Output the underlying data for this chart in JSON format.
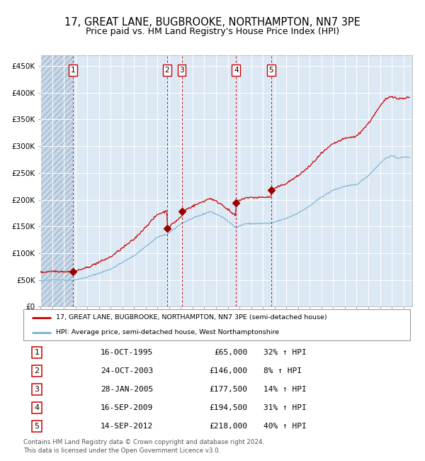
{
  "title_line1": "17, GREAT LANE, BUGBROOKE, NORTHAMPTON, NN7 3PE",
  "title_line2": "Price paid vs. HM Land Registry's House Price Index (HPI)",
  "title_fontsize": 10.5,
  "subtitle_fontsize": 9,
  "plot_bg_color": "#dce9f5",
  "grid_color": "#ffffff",
  "red_line_color": "#cc0000",
  "blue_line_color": "#7ab0d4",
  "sale_marker_color": "#990000",
  "vline_color": "#cc0000",
  "ylim": [
    0,
    470000
  ],
  "yticks": [
    0,
    50000,
    100000,
    150000,
    200000,
    250000,
    300000,
    350000,
    400000,
    450000
  ],
  "ytick_labels": [
    "£0",
    "£50K",
    "£100K",
    "£150K",
    "£200K",
    "£250K",
    "£300K",
    "£350K",
    "£400K",
    "£450K"
  ],
  "xmin": 1993.0,
  "xmax": 2024.75,
  "sales": [
    {
      "num": 1,
      "date": "16-OCT-1995",
      "price": 65000,
      "hpi_pct": "32% ↑ HPI",
      "x_year": 1995.79
    },
    {
      "num": 2,
      "date": "24-OCT-2003",
      "price": 146000,
      "hpi_pct": "8% ↑ HPI",
      "x_year": 2003.81
    },
    {
      "num": 3,
      "date": "28-JAN-2005",
      "price": 177500,
      "hpi_pct": "14% ↑ HPI",
      "x_year": 2005.07
    },
    {
      "num": 4,
      "date": "16-SEP-2009",
      "price": 194500,
      "hpi_pct": "31% ↑ HPI",
      "x_year": 2009.71
    },
    {
      "num": 5,
      "date": "14-SEP-2012",
      "price": 218000,
      "hpi_pct": "40% ↑ HPI",
      "x_year": 2012.71
    }
  ],
  "legend_line1": "17, GREAT LANE, BUGBROOKE, NORTHAMPTON, NN7 3PE (semi-detached house)",
  "legend_line2": "HPI: Average price, semi-detached house, West Northamptonshire",
  "footer_line1": "Contains HM Land Registry data © Crown copyright and database right 2024.",
  "footer_line2": "This data is licensed under the Open Government Licence v3.0."
}
